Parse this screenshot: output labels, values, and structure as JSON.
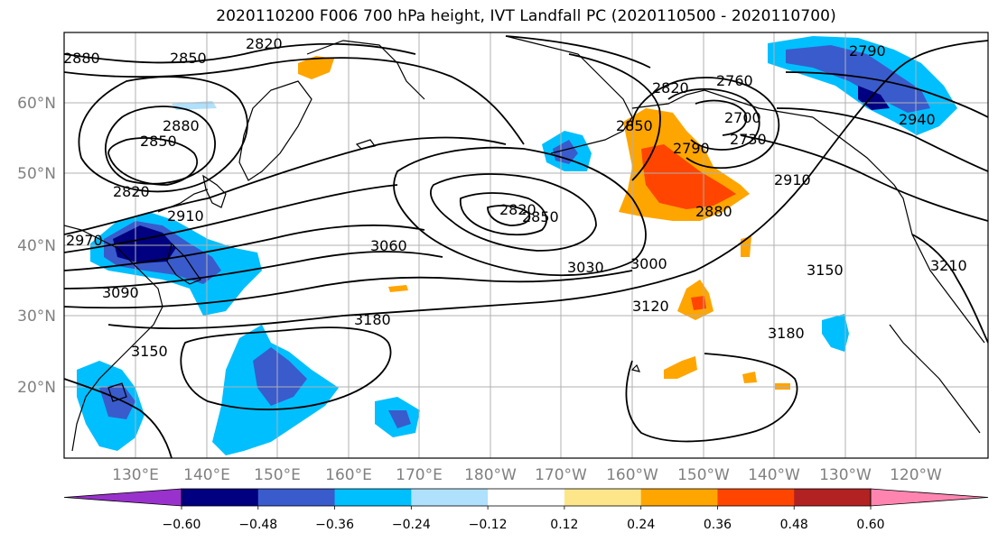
{
  "title": "2020110200 F006 700 hPa height, IVT Landfall PC (2020110500 - 2020110700)",
  "map": {
    "lon_labels": [
      "130°E",
      "140°E",
      "150°E",
      "160°E",
      "170°E",
      "180°W",
      "170°W",
      "160°W",
      "150°W",
      "140°W",
      "130°W",
      "120°W"
    ],
    "lat_labels": [
      "60°N",
      "50°N",
      "40°N",
      "30°N",
      "20°N"
    ],
    "grid": true,
    "contour_color": "#000000",
    "height_contour_labels": [
      "2880",
      "2850",
      "2820",
      "2880",
      "2850",
      "2820",
      "2910",
      "2970",
      "3090",
      "3150",
      "3060",
      "3030",
      "3000",
      "3120",
      "3180",
      "3180",
      "2820",
      "2850",
      "2850",
      "2820",
      "2760",
      "2700",
      "2730",
      "2790",
      "2880",
      "2910",
      "3150",
      "3210",
      "2790",
      "2940"
    ]
  },
  "colorbar": {
    "colors": [
      "#9932cc",
      "#000080",
      "#3a5bcc",
      "#00bfff",
      "#afe0fc",
      "#ffffff",
      "#fde68a",
      "#ffa500",
      "#ff4500",
      "#b22222",
      "#ff85b0"
    ],
    "tick_labels": [
      "−0.60",
      "−0.48",
      "−0.36",
      "−0.24",
      "−0.12",
      "0.12",
      "0.24",
      "0.36",
      "0.48",
      "0.60"
    ],
    "levels": [
      -0.6,
      -0.48,
      -0.36,
      -0.24,
      -0.12,
      0.12,
      0.24,
      0.36,
      0.48,
      0.6
    ],
    "extend": "both"
  }
}
